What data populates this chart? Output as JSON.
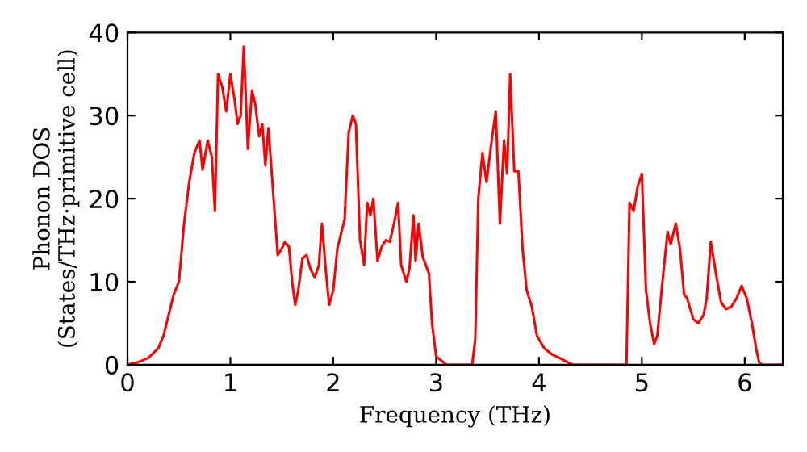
{
  "chart_data": {
    "type": "line",
    "xlabel": "Frequency (THz)",
    "ylabel": "Phonon DOS\n(States/THz·primitive cell)",
    "xlim": [
      0,
      6.37
    ],
    "ylim": [
      0,
      40
    ],
    "xticks": [
      0,
      1,
      2,
      3,
      4,
      5,
      6
    ],
    "yticks": [
      0,
      10,
      20,
      30,
      40
    ],
    "grid": false,
    "marker": "none",
    "line_style": "solid",
    "series": [
      {
        "color": "#ff0000",
        "x": [
          0,
          0.1,
          0.2,
          0.3,
          0.35,
          0.4,
          0.45,
          0.5,
          0.55,
          0.6,
          0.65,
          0.7,
          0.73,
          0.78,
          0.82,
          0.85,
          0.88,
          0.92,
          0.96,
          1.0,
          1.04,
          1.07,
          1.1,
          1.13,
          1.17,
          1.21,
          1.24,
          1.28,
          1.31,
          1.34,
          1.37,
          1.42,
          1.46,
          1.5,
          1.53,
          1.57,
          1.6,
          1.63,
          1.66,
          1.7,
          1.74,
          1.78,
          1.82,
          1.86,
          1.89,
          1.93,
          1.96,
          2.0,
          2.04,
          2.08,
          2.11,
          2.15,
          2.19,
          2.22,
          2.26,
          2.3,
          2.33,
          2.36,
          2.39,
          2.43,
          2.47,
          2.51,
          2.55,
          2.59,
          2.63,
          2.66,
          2.71,
          2.74,
          2.78,
          2.8,
          2.83,
          2.87,
          2.93,
          2.96,
          3.0,
          3.05,
          3.1,
          3.35,
          3.38,
          3.41,
          3.45,
          3.49,
          3.54,
          3.58,
          3.62,
          3.66,
          3.69,
          3.72,
          3.76,
          3.8,
          3.84,
          3.88,
          3.93,
          3.98,
          4.05,
          4.12,
          4.2,
          4.28,
          4.33,
          4.85,
          4.88,
          4.92,
          4.96,
          5.0,
          5.04,
          5.08,
          5.12,
          5.15,
          5.2,
          5.25,
          5.28,
          5.33,
          5.37,
          5.41,
          5.44,
          5.5,
          5.55,
          5.6,
          5.63,
          5.67,
          5.72,
          5.77,
          5.82,
          5.87,
          5.92,
          5.97,
          6.02,
          6.07,
          6.11,
          6.14,
          6.17,
          6.37
        ],
        "values": [
          0,
          0.3,
          0.8,
          2,
          3.5,
          6,
          8.5,
          10,
          17,
          22,
          25.5,
          27,
          23.5,
          27,
          25,
          18.5,
          35,
          33.5,
          30.5,
          35,
          32,
          29,
          30,
          38.3,
          26,
          33,
          31.5,
          27.5,
          29,
          24,
          28.5,
          20,
          13.2,
          14,
          14.8,
          14.2,
          10,
          7.2,
          9,
          12.8,
          13.2,
          11.5,
          10.5,
          12,
          17,
          11,
          7.2,
          9,
          14,
          16,
          17.5,
          28,
          30,
          29,
          15,
          12,
          19.5,
          18,
          20,
          12.5,
          14.2,
          15,
          14.8,
          17,
          19.5,
          12,
          10,
          11.5,
          18,
          12.5,
          17,
          13,
          11,
          5,
          1,
          0.5,
          0,
          0,
          3,
          20,
          25.5,
          22,
          27,
          30.5,
          17,
          27,
          23,
          35,
          23.3,
          23.3,
          14,
          9,
          7,
          3.5,
          2,
          1.3,
          0.8,
          0.3,
          0,
          0,
          19.5,
          18.5,
          21.5,
          23,
          9,
          5,
          2.5,
          3.5,
          10,
          16,
          14.5,
          17,
          14,
          8.5,
          8,
          5.5,
          5,
          6,
          8,
          14.8,
          11,
          7.5,
          6.7,
          7,
          8,
          9.5,
          8,
          5,
          2,
          0.3,
          0,
          0
        ]
      }
    ]
  }
}
